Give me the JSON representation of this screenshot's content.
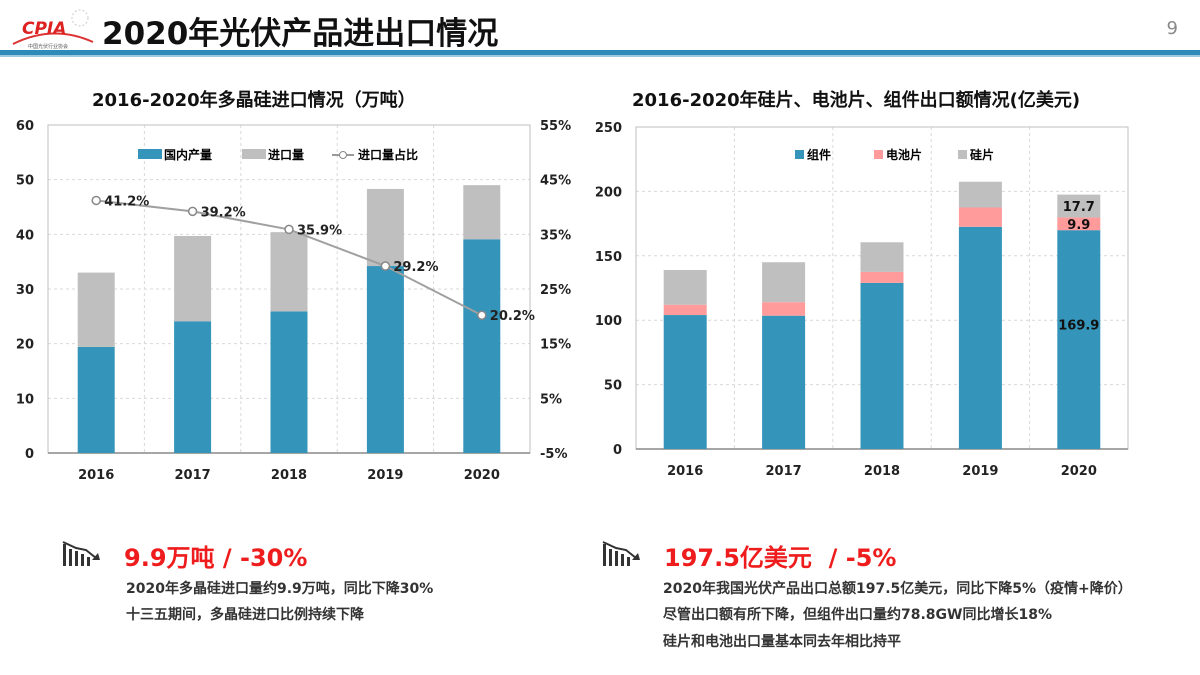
{
  "slide": {
    "title": "2020年光伏产品进出口情况",
    "page_number": "9",
    "logo_text": "CPIA",
    "logo_subtext": "中国光伏行业协会"
  },
  "chart_data": [
    {
      "type": "bar",
      "stacked": true,
      "title": "2016-2020年多晶硅进口情况（万吨）",
      "categories": [
        "2016",
        "2017",
        "2018",
        "2019",
        "2020"
      ],
      "series": [
        {
          "name": "国内产量",
          "values": [
            19.4,
            24.1,
            25.9,
            34.2,
            39.1
          ],
          "color": "#3494ba"
        },
        {
          "name": "进口量",
          "values": [
            13.6,
            15.6,
            14.5,
            14.1,
            9.9
          ],
          "color": "#bfbfbf"
        }
      ],
      "line_series": {
        "name": "进口量占比",
        "type": "line",
        "axis": "right",
        "values": [
          41.2,
          39.2,
          35.9,
          29.2,
          20.2
        ],
        "labels": [
          "41.2%",
          "39.2%",
          "35.9%",
          "29.2%",
          "20.2%"
        ],
        "color": "#a0a0a0"
      },
      "ylim": [
        0,
        60
      ],
      "yticks": [
        "0",
        "10",
        "20",
        "30",
        "40",
        "50",
        "60"
      ],
      "y2lim": [
        -5,
        55
      ],
      "y2ticks": [
        "-5%",
        "5%",
        "15%",
        "25%",
        "35%",
        "45%",
        "55%"
      ],
      "grid": true,
      "legend": "top-center"
    },
    {
      "type": "bar",
      "stacked": true,
      "title": "2016-2020年硅片、电池片、组件出口额情况(亿美元)",
      "categories": [
        "2016",
        "2017",
        "2018",
        "2019",
        "2020"
      ],
      "series": [
        {
          "name": "组件",
          "values": [
            104,
            103.5,
            129,
            172.5,
            169.9
          ],
          "color": "#3494ba"
        },
        {
          "name": "电池片",
          "values": [
            8,
            10.5,
            8.5,
            15,
            9.9
          ],
          "color": "#ff9b9b"
        },
        {
          "name": "硅片",
          "values": [
            27,
            31,
            23,
            20,
            17.7
          ],
          "color": "#bfbfbf"
        }
      ],
      "data_labels": {
        "2020": [
          "169.9",
          "9.9",
          "17.7"
        ]
      },
      "ylim": [
        0,
        250
      ],
      "yticks": [
        "0",
        "50",
        "100",
        "150",
        "200",
        "250"
      ],
      "grid": true,
      "legend": "top-center"
    }
  ],
  "summary_left": {
    "icon": "declining-bar-chart-icon",
    "headline": "9.9万吨 / -30%",
    "lines": [
      "2020年多晶硅进口量约9.9万吨，同比下降30%",
      "十三五期间，多晶硅进口比例持续下降"
    ]
  },
  "summary_right": {
    "icon": "declining-bar-chart-icon",
    "headline": "197.5亿美元  / -5%",
    "lines": [
      "2020年我国光伏产品出口总额197.5亿美元，同比下降5%（疫情+降价）",
      "尽管出口额有所下降，但组件出口量约78.8GW同比增长18%",
      "硅片和电池出口量基本同去年相比持平"
    ]
  },
  "colors": {
    "accent": "#2e8bb8",
    "headline": "#ee1c1c"
  }
}
